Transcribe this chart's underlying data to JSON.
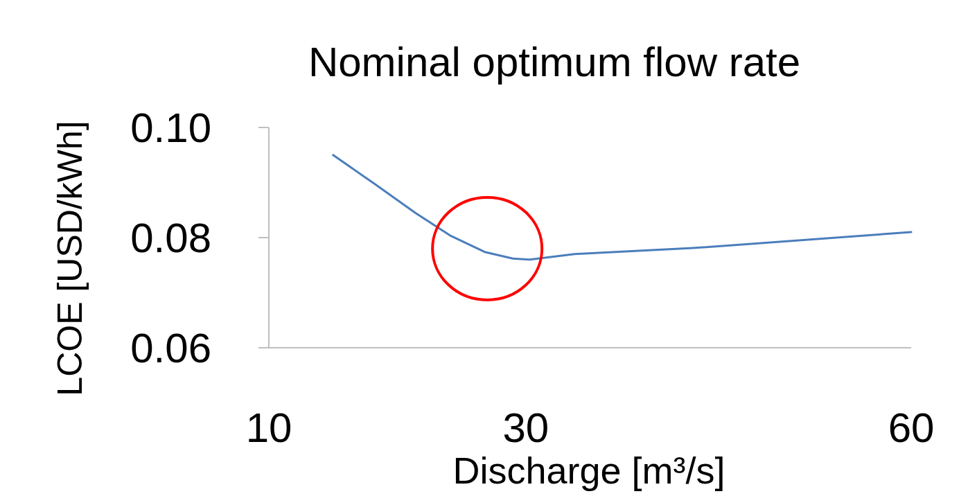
{
  "chart_data": {
    "type": "line",
    "title": "Nominal optimum flow rate",
    "xlabel": "Discharge [m³/s]",
    "ylabel": "LCOE [USD/kWh]",
    "x": [
      15,
      18.2,
      21.4,
      24.1,
      26.8,
      29,
      30.3,
      33.8,
      43,
      60
    ],
    "series": [
      {
        "color": "#4a7ebb",
        "values": [
          0.095,
          0.0898,
          0.0845,
          0.0804,
          0.0774,
          0.0762,
          0.076,
          0.077,
          0.0781,
          0.081
        ]
      }
    ],
    "xlim": [
      10,
      60
    ],
    "xticks": [
      10,
      30,
      60
    ],
    "ylim": [
      0.06,
      0.1
    ],
    "yticks": [
      {
        "value": 0.06,
        "label": "0.06"
      },
      {
        "value": 0.08,
        "label": "0.08"
      },
      {
        "value": 0.1,
        "label": "0.10"
      }
    ],
    "grid": false,
    "marker": "none",
    "line_style": "solid"
  }
}
